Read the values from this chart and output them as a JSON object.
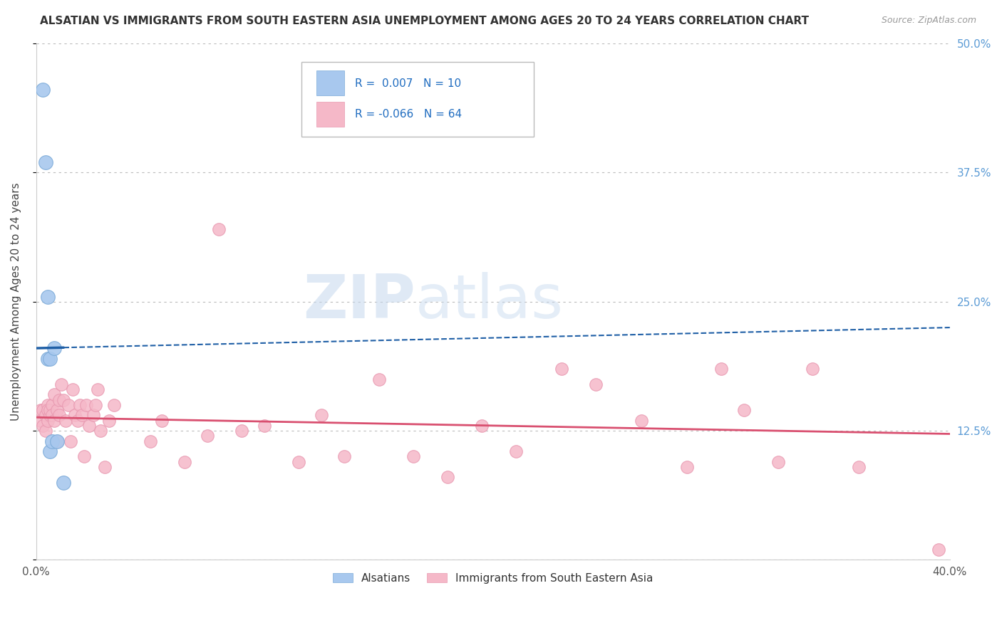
{
  "title": "ALSATIAN VS IMMIGRANTS FROM SOUTH EASTERN ASIA UNEMPLOYMENT AMONG AGES 20 TO 24 YEARS CORRELATION CHART",
  "source": "Source: ZipAtlas.com",
  "ylabel": "Unemployment Among Ages 20 to 24 years",
  "xlim": [
    0.0,
    0.4
  ],
  "ylim": [
    0.0,
    0.5
  ],
  "yticks": [
    0.0,
    0.125,
    0.25,
    0.375,
    0.5
  ],
  "ytick_labels_right": [
    "",
    "12.5%",
    "25.0%",
    "37.5%",
    "50.0%"
  ],
  "xtick_labels": [
    "0.0%",
    "",
    "",
    "",
    "40.0%"
  ],
  "legend_label_blue": "Alsatians",
  "legend_label_pink": "Immigrants from South Eastern Asia",
  "watermark_zip": "ZIP",
  "watermark_atlas": "atlas",
  "blue_color": "#A8C8EE",
  "blue_edge_color": "#7BAAD8",
  "pink_color": "#F5B8C8",
  "pink_edge_color": "#E898B0",
  "blue_line_color": "#1F5FA6",
  "pink_line_color": "#D95070",
  "blue_scatter_x": [
    0.003,
    0.004,
    0.005,
    0.005,
    0.006,
    0.006,
    0.007,
    0.008,
    0.009,
    0.012
  ],
  "blue_scatter_y": [
    0.455,
    0.385,
    0.255,
    0.195,
    0.195,
    0.105,
    0.115,
    0.205,
    0.115,
    0.075
  ],
  "blue_trend_x0": 0.0,
  "blue_trend_x_solid_end": 0.012,
  "blue_trend_x1": 0.4,
  "blue_trend_y0": 0.205,
  "blue_trend_y1": 0.225,
  "pink_trend_x0": 0.0,
  "pink_trend_x1": 0.4,
  "pink_trend_y0": 0.138,
  "pink_trend_y1": 0.122,
  "pink_scatter_x": [
    0.002,
    0.002,
    0.003,
    0.003,
    0.004,
    0.004,
    0.005,
    0.005,
    0.005,
    0.006,
    0.006,
    0.007,
    0.007,
    0.008,
    0.008,
    0.009,
    0.009,
    0.01,
    0.01,
    0.011,
    0.012,
    0.013,
    0.014,
    0.015,
    0.016,
    0.017,
    0.018,
    0.019,
    0.02,
    0.021,
    0.022,
    0.023,
    0.025,
    0.026,
    0.027,
    0.028,
    0.03,
    0.032,
    0.034,
    0.05,
    0.055,
    0.065,
    0.075,
    0.08,
    0.09,
    0.1,
    0.115,
    0.125,
    0.135,
    0.15,
    0.165,
    0.18,
    0.195,
    0.21,
    0.23,
    0.245,
    0.265,
    0.285,
    0.3,
    0.31,
    0.325,
    0.34,
    0.36,
    0.395
  ],
  "pink_scatter_y": [
    0.135,
    0.145,
    0.13,
    0.145,
    0.125,
    0.14,
    0.15,
    0.145,
    0.135,
    0.14,
    0.145,
    0.15,
    0.14,
    0.135,
    0.16,
    0.115,
    0.145,
    0.14,
    0.155,
    0.17,
    0.155,
    0.135,
    0.15,
    0.115,
    0.165,
    0.14,
    0.135,
    0.15,
    0.14,
    0.1,
    0.15,
    0.13,
    0.14,
    0.15,
    0.165,
    0.125,
    0.09,
    0.135,
    0.15,
    0.115,
    0.135,
    0.095,
    0.12,
    0.32,
    0.125,
    0.13,
    0.095,
    0.14,
    0.1,
    0.175,
    0.1,
    0.08,
    0.13,
    0.105,
    0.185,
    0.17,
    0.135,
    0.09,
    0.185,
    0.145,
    0.095,
    0.185,
    0.09,
    0.01
  ]
}
